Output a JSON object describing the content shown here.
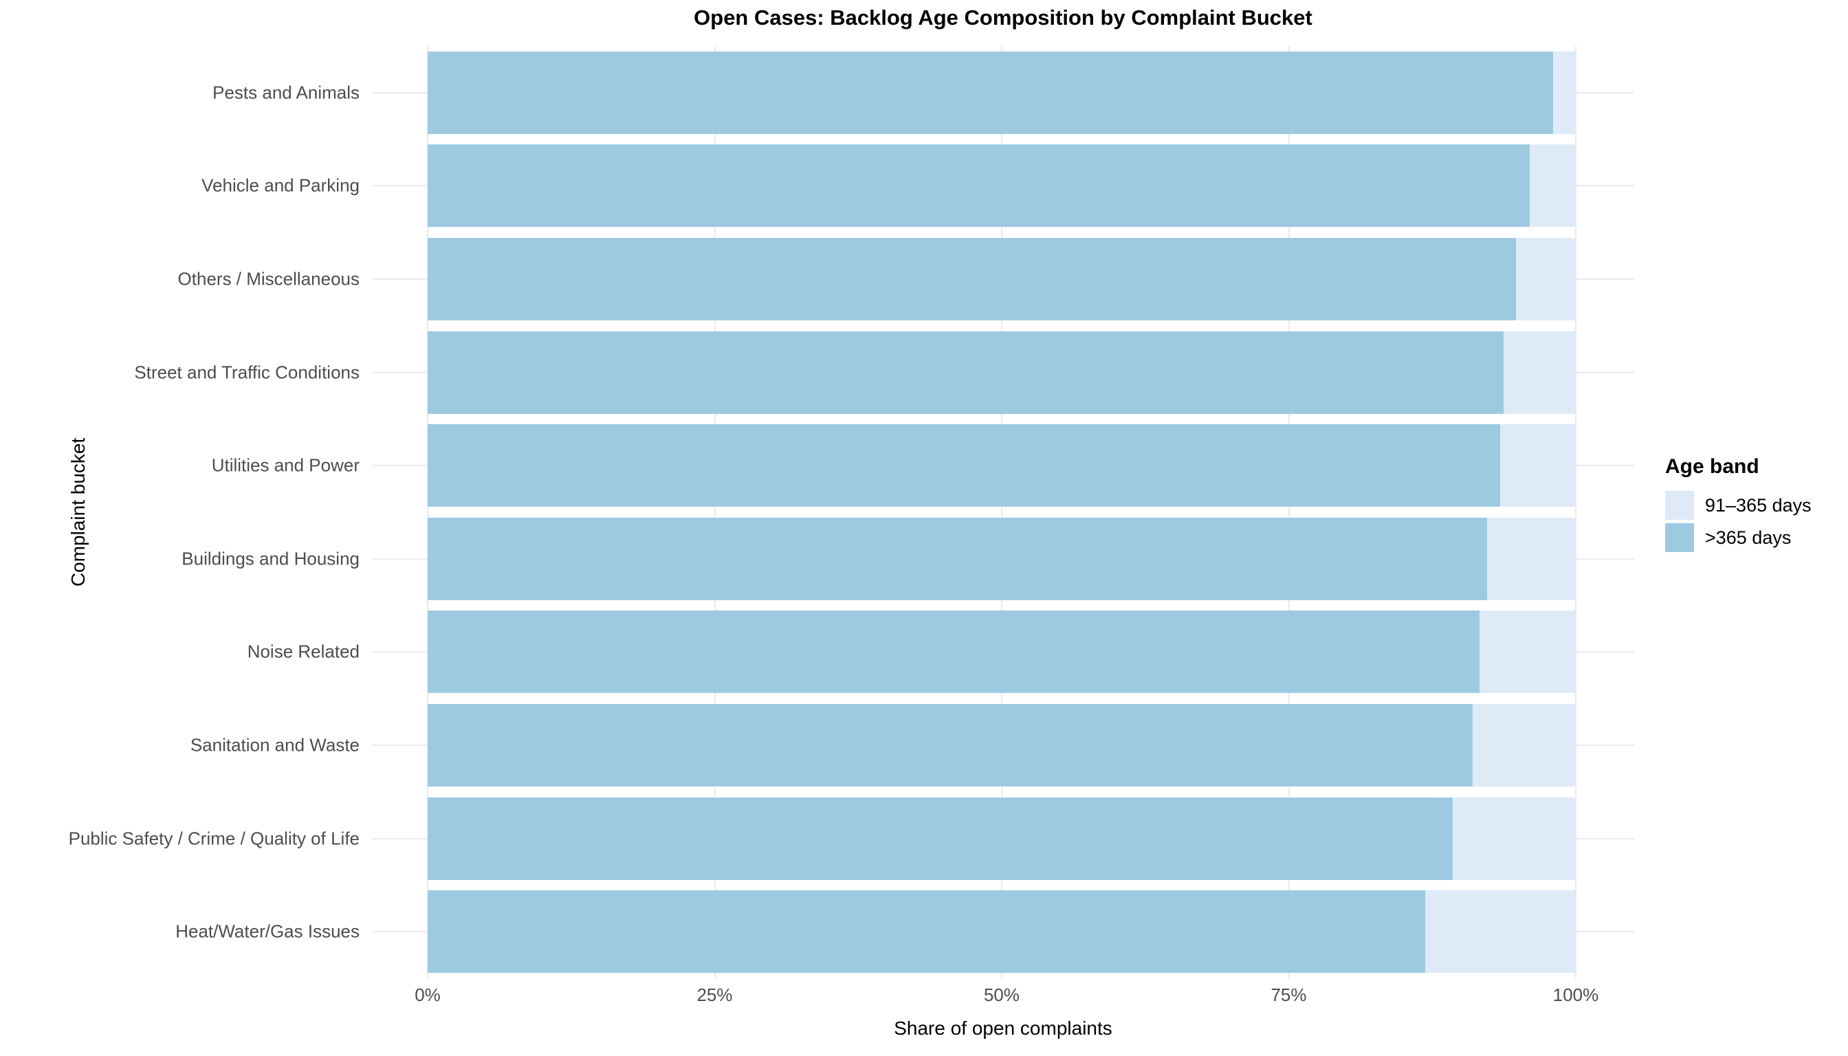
{
  "title": "Open Cases: Backlog Age Composition by Complaint Bucket",
  "axes": {
    "x_title": "Share of open complaints",
    "y_title": "Complaint bucket",
    "x_ticks": [
      {
        "label": "0%",
        "value": 0
      },
      {
        "label": "25%",
        "value": 25
      },
      {
        "label": "50%",
        "value": 50
      },
      {
        "label": "75%",
        "value": 75
      },
      {
        "label": "100%",
        "value": 100
      }
    ]
  },
  "legend": {
    "title": "Age band",
    "items": [
      {
        "label": "91–365 days",
        "color": "#DEEBF7"
      },
      {
        "label": ">365 days",
        "color": "#9ECAE1"
      }
    ]
  },
  "colors": {
    "band_91_365": "#DEEBF7",
    "band_gt365": "#9ECAE1",
    "gridline": "#EBEBEB",
    "axis_text": "#4D4D4D",
    "title_text": "#000000",
    "background": "#FFFFFF"
  },
  "chart_data": {
    "type": "bar",
    "orientation": "horizontal",
    "stacked": true,
    "units": "percent",
    "title": "Open Cases: Backlog Age Composition by Complaint Bucket",
    "xlabel": "Share of open complaints",
    "ylabel": "Complaint bucket",
    "xlim": [
      0,
      100
    ],
    "grid": "major-x and y-row gridlines, light gray, no axis lines",
    "legend_position": "right",
    "legend_title": "Age band",
    "categories": [
      "Pests and Animals",
      "Vehicle and Parking",
      "Others / Miscellaneous",
      "Street and Traffic Conditions",
      "Utilities and Power",
      "Buildings and Housing",
      "Noise Related",
      "Sanitation and Waste",
      "Public Safety / Crime / Quality of Life",
      "Heat/Water/Gas Issues"
    ],
    "series": [
      {
        "name": ">365 days",
        "color": "#9ECAE1",
        "values": [
          98.0,
          96.0,
          94.8,
          93.7,
          93.4,
          92.3,
          91.6,
          91.0,
          89.3,
          86.9
        ]
      },
      {
        "name": "91–365 days",
        "color": "#DEEBF7",
        "values": [
          2.0,
          4.0,
          5.2,
          6.3,
          6.6,
          7.7,
          8.4,
          9.0,
          10.7,
          13.1
        ]
      }
    ]
  }
}
